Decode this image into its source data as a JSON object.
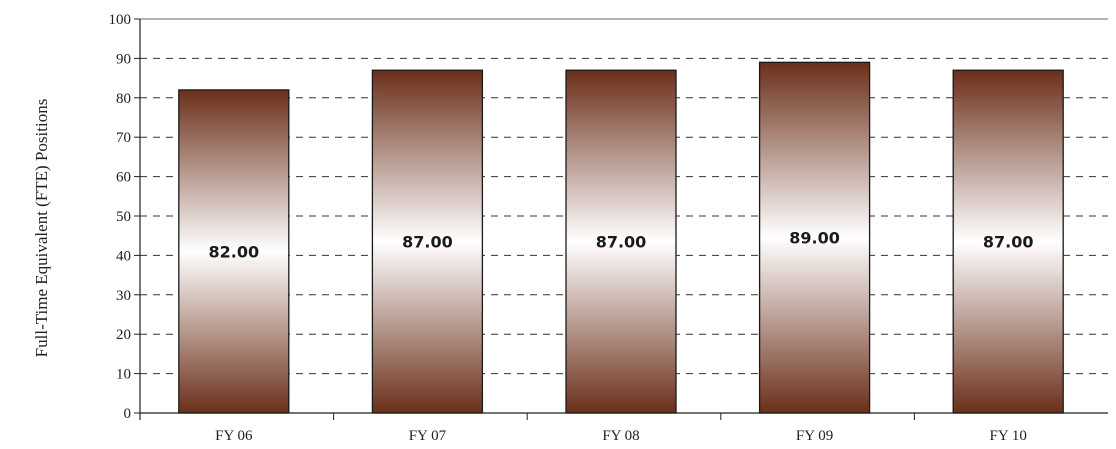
{
  "chart_data": {
    "type": "bar",
    "categories": [
      "FY 06",
      "FY 07",
      "FY 08",
      "FY 09",
      "FY 10"
    ],
    "values": [
      82,
      87,
      87,
      89,
      87
    ],
    "data_labels": [
      "82.00",
      "87.00",
      "87.00",
      "89.00",
      "87.00"
    ],
    "title": "",
    "xlabel": "",
    "ylabel": "Full-Time Equivalent (FTE) Positions",
    "ylim": [
      0,
      100
    ],
    "yticks": [
      0,
      10,
      20,
      30,
      40,
      50,
      60,
      70,
      80,
      90,
      100
    ],
    "grid": true,
    "legend": "none",
    "colors": {
      "bar_dark": "#6b2f1a",
      "bar_light": "#ffffff",
      "bar_border": "#1a1a1a",
      "gridline": "#333333"
    }
  }
}
